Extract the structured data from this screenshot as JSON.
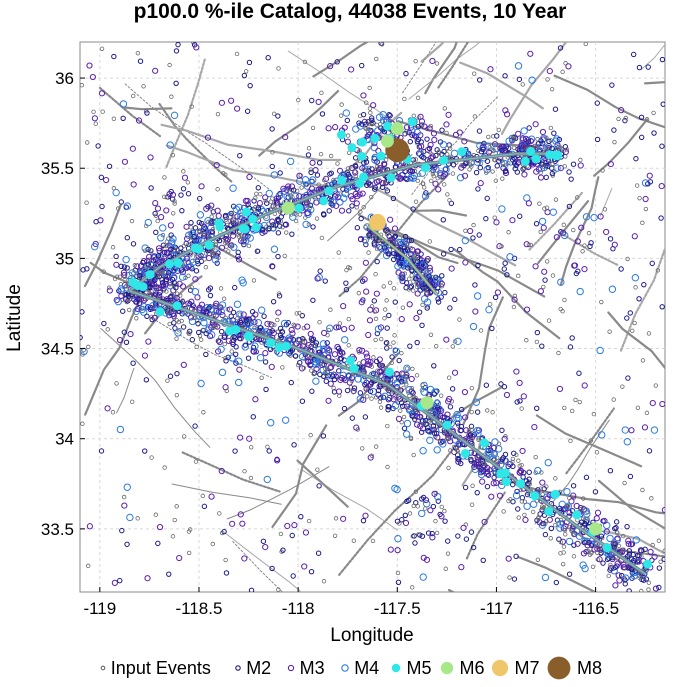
{
  "chart_data": {
    "type": "scatter",
    "title": "p100.0 %-ile Catalog, 44038 Events, 10 Year",
    "xlabel": "Longitude",
    "ylabel": "Latitude",
    "xlim": [
      -119.1,
      -116.15
    ],
    "ylim": [
      33.15,
      36.2
    ],
    "xticks": [
      -119,
      -118.5,
      -118,
      -117.5,
      -117,
      -116.5
    ],
    "xtick_labels": [
      "-119",
      "-118.5",
      "-118",
      "-117.5",
      "-117",
      "-116.5"
    ],
    "yticks": [
      33.5,
      34,
      34.5,
      35,
      35.5,
      36
    ],
    "ytick_labels": [
      "33.5",
      "34",
      "34.5",
      "35",
      "35.5",
      "36"
    ],
    "grid": true,
    "legend_position": "bottom",
    "legend": [
      {
        "label": "Input Events",
        "style": "input",
        "color": "#6b6b6b"
      },
      {
        "label": "M2",
        "style": "ring",
        "color": "#1a1a8c"
      },
      {
        "label": "M3",
        "style": "ring",
        "color": "#5a1fb0"
      },
      {
        "label": "M4",
        "style": "ring",
        "color": "#2c7be0"
      },
      {
        "label": "M5",
        "style": "fill",
        "color": "#2ee8e8"
      },
      {
        "label": "M6",
        "style": "fill",
        "color": "#a8e88a"
      },
      {
        "label": "M7",
        "style": "fill",
        "color": "#f0c66a"
      },
      {
        "label": "M8",
        "style": "fill",
        "color": "#8a5e2a"
      }
    ],
    "fault_trace": [
      [
        -116.25,
        33.25
      ],
      [
        -116.6,
        33.52
      ],
      [
        -117.0,
        33.85
      ],
      [
        -117.3,
        34.1
      ],
      [
        -117.55,
        34.3
      ],
      [
        -118.0,
        34.5
      ],
      [
        -118.4,
        34.65
      ],
      [
        -118.85,
        34.82
      ],
      [
        -118.7,
        34.95
      ],
      [
        -118.45,
        35.1
      ],
      [
        -118.15,
        35.25
      ],
      [
        -117.8,
        35.4
      ],
      [
        -117.4,
        35.52
      ],
      [
        -116.9,
        35.58
      ],
      [
        -116.7,
        35.58
      ]
    ],
    "secondary_fault": [
      [
        -117.65,
        35.18
      ],
      [
        -117.45,
        35.0
      ],
      [
        -117.3,
        34.8
      ]
    ],
    "large_events": [
      {
        "lon": -117.5,
        "lat": 35.6,
        "mag": "M8"
      },
      {
        "lon": -117.6,
        "lat": 35.2,
        "mag": "M7"
      },
      {
        "lon": -117.55,
        "lat": 35.65,
        "mag": "M6"
      },
      {
        "lon": -117.5,
        "lat": 35.72,
        "mag": "M6"
      },
      {
        "lon": -116.5,
        "lat": 33.5,
        "mag": "M6"
      },
      {
        "lon": -117.35,
        "lat": 34.2,
        "mag": "M6"
      },
      {
        "lon": -118.05,
        "lat": 35.28,
        "mag": "M6"
      }
    ],
    "clusters": [
      {
        "lon": -117.55,
        "lat": 35.7,
        "rx": 0.25,
        "ry": 0.12,
        "n": 140,
        "mag": "M4"
      },
      {
        "lon": -118.25,
        "lat": 34.55,
        "rx": 0.2,
        "ry": 0.15,
        "n": 40,
        "mag": "M3"
      },
      {
        "lon": -117.6,
        "lat": 34.7,
        "rx": 0.3,
        "ry": 0.3,
        "n": 60,
        "mag": "M3"
      },
      {
        "lon": -118.6,
        "lat": 35.3,
        "rx": 0.2,
        "ry": 0.2,
        "n": 25,
        "mag": "M3"
      },
      {
        "lon": -116.8,
        "lat": 35.0,
        "rx": 0.4,
        "ry": 0.4,
        "n": 60,
        "mag": "M3"
      },
      {
        "lon": -117.4,
        "lat": 33.5,
        "rx": 0.3,
        "ry": 0.2,
        "n": 40,
        "mag": "M3"
      }
    ]
  }
}
